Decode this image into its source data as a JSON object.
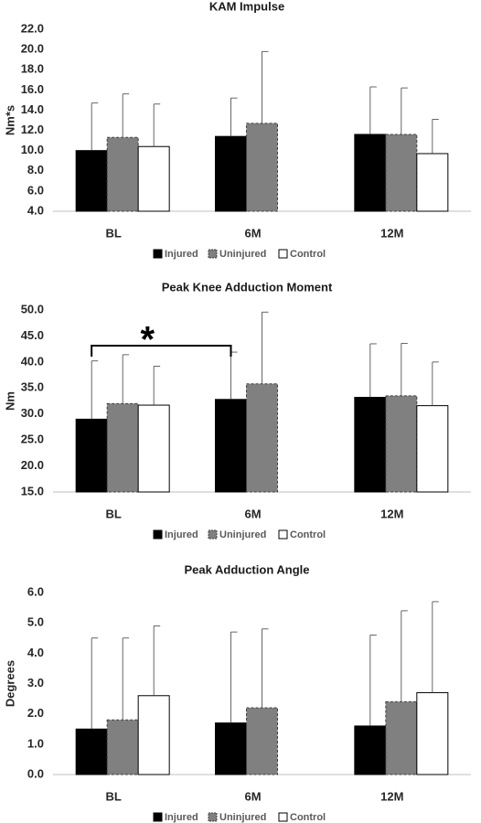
{
  "chart_data": [
    {
      "type": "bar",
      "title": "KAM Impulse",
      "y_label": "Nm*s",
      "categories": [
        "BL",
        "6M",
        "12M"
      ],
      "series": [
        {
          "name": "Injured",
          "color": "#000000",
          "line_style": "solid",
          "values": [
            10.0,
            11.4,
            11.6
          ],
          "errors": [
            4.7,
            3.8,
            4.7
          ]
        },
        {
          "name": "Uninjured",
          "color": "#808080",
          "line_style": "dashed",
          "values": [
            11.3,
            12.7,
            11.6
          ],
          "errors": [
            4.3,
            7.1,
            4.6
          ]
        },
        {
          "name": "Control",
          "color": "#ffffff",
          "line_style": "solid",
          "values": [
            10.4,
            null,
            9.7
          ],
          "errors": [
            4.2,
            null,
            3.4
          ]
        }
      ],
      "ylim": [
        4,
        22
      ],
      "yticks": [
        {
          "value": 4,
          "label": "4.0"
        },
        {
          "value": 6,
          "label": "6.0"
        },
        {
          "value": 8,
          "label": "8.0"
        },
        {
          "value": 10,
          "label": "10.0"
        },
        {
          "value": 12,
          "label": "12.0"
        },
        {
          "value": 14,
          "label": "14.0"
        },
        {
          "value": 16,
          "label": "16.0"
        },
        {
          "value": 18,
          "label": "18.0"
        },
        {
          "value": 20,
          "label": "20.0"
        },
        {
          "value": 22,
          "label": "22.0"
        }
      ],
      "grid": false,
      "legend": "bottom"
    },
    {
      "type": "bar",
      "title": "Peak Knee Adduction Moment",
      "y_label": "Nm",
      "categories": [
        "BL",
        "6M",
        "12M"
      ],
      "series": [
        {
          "name": "Injured",
          "color": "#000000",
          "line_style": "solid",
          "values": [
            29.0,
            32.8,
            33.2
          ],
          "errors": [
            11.2,
            9.1,
            10.3
          ]
        },
        {
          "name": "Uninjured",
          "color": "#808080",
          "line_style": "dashed",
          "values": [
            32.0,
            35.8,
            33.5
          ],
          "errors": [
            9.4,
            13.8,
            10.1
          ]
        },
        {
          "name": "Control",
          "color": "#ffffff",
          "line_style": "solid",
          "values": [
            31.7,
            null,
            31.6
          ],
          "errors": [
            7.5,
            null,
            8.4
          ]
        }
      ],
      "ylim": [
        15,
        50
      ],
      "yticks": [
        {
          "value": 15,
          "label": "15.0"
        },
        {
          "value": 20,
          "label": "20.0"
        },
        {
          "value": 25,
          "label": "25.0"
        },
        {
          "value": 30,
          "label": "30.0"
        },
        {
          "value": 35,
          "label": "35.0"
        },
        {
          "value": 40,
          "label": "40.0"
        },
        {
          "value": 45,
          "label": "45.0"
        },
        {
          "value": 50,
          "label": "50.0"
        }
      ],
      "grid": false,
      "legend": "bottom",
      "annotation": "*"
    },
    {
      "type": "bar",
      "title": "Peak Adduction Angle",
      "y_label": "Degrees",
      "categories": [
        "BL",
        "6M",
        "12M"
      ],
      "series": [
        {
          "name": "Injured",
          "color": "#000000",
          "line_style": "solid",
          "values": [
            1.5,
            1.7,
            1.6
          ],
          "errors": [
            3.0,
            3.0,
            3.0
          ]
        },
        {
          "name": "Uninjured",
          "color": "#808080",
          "line_style": "dashed",
          "values": [
            1.8,
            2.2,
            2.4
          ],
          "errors": [
            2.7,
            2.6,
            3.0
          ]
        },
        {
          "name": "Control",
          "color": "#ffffff",
          "line_style": "solid",
          "values": [
            2.6,
            null,
            2.7
          ],
          "errors": [
            2.3,
            null,
            3.0
          ]
        }
      ],
      "ylim": [
        0,
        6
      ],
      "yticks": [
        {
          "value": 0,
          "label": "0.0"
        },
        {
          "value": 1,
          "label": "1.0"
        },
        {
          "value": 2,
          "label": "2.0"
        },
        {
          "value": 3,
          "label": "3.0"
        },
        {
          "value": 4,
          "label": "4.0"
        },
        {
          "value": 5,
          "label": "5.0"
        },
        {
          "value": 6,
          "label": "6.0"
        }
      ],
      "grid": false,
      "legend": "bottom"
    }
  ]
}
